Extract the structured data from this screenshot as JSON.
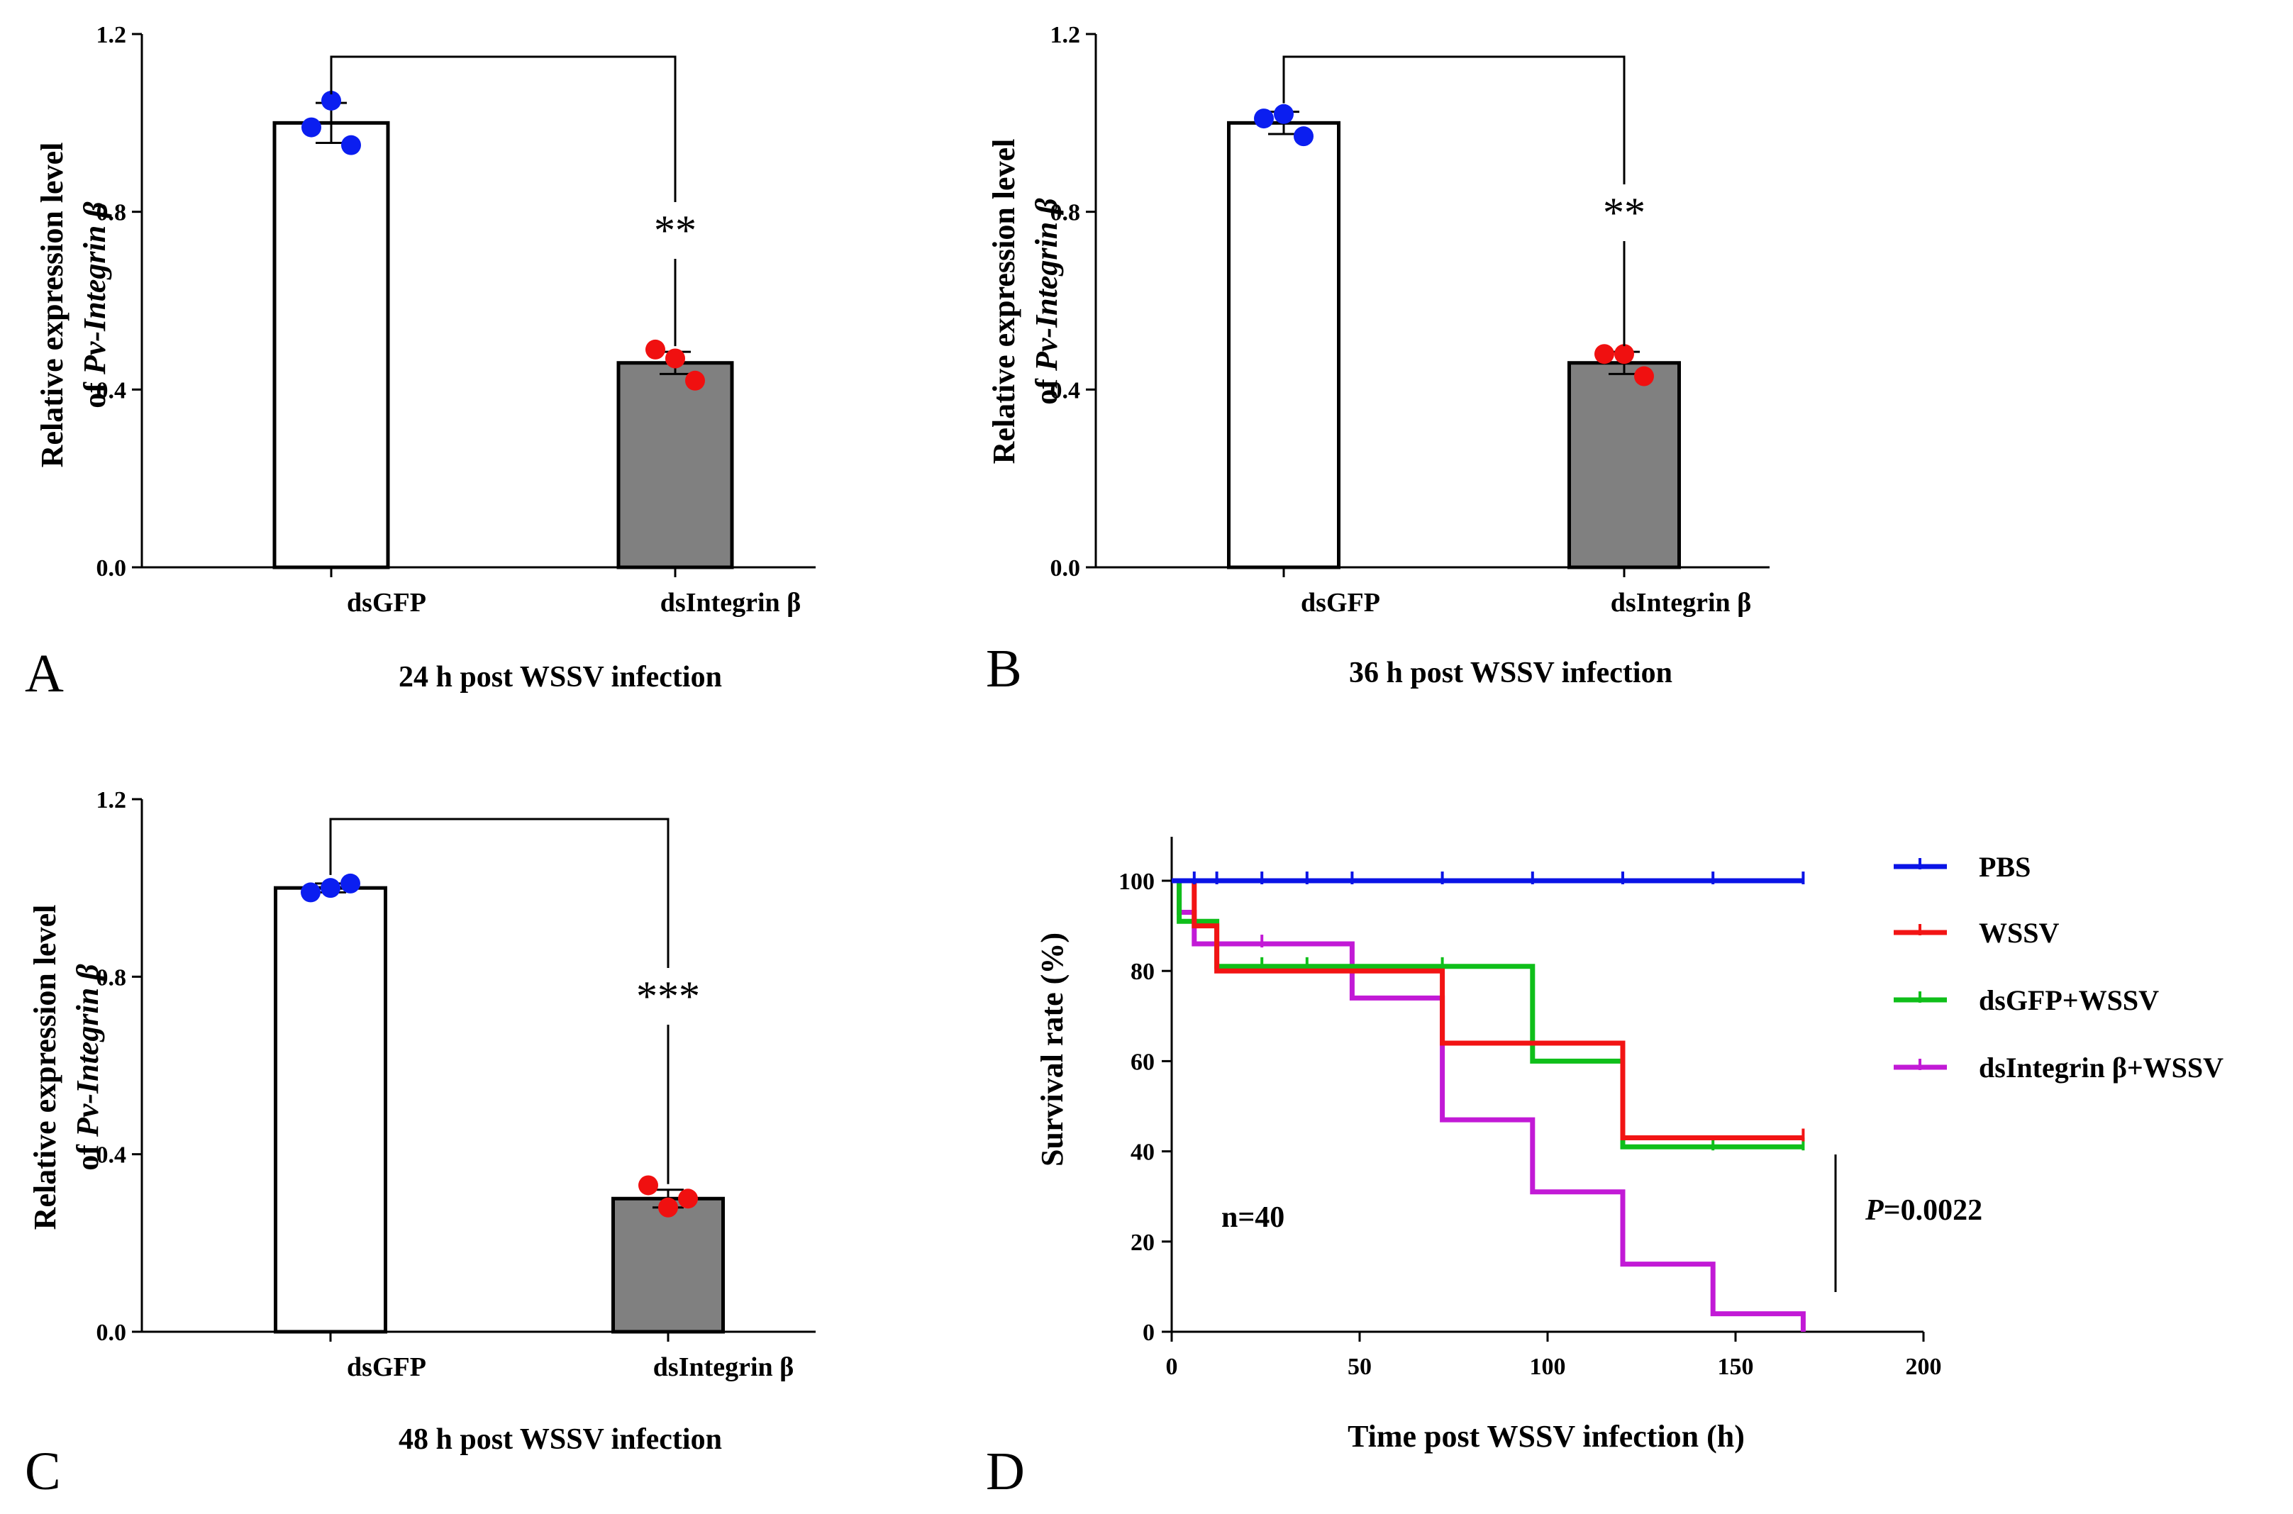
{
  "chart_data": [
    {
      "panel": "A",
      "type": "bar",
      "title": "24 h post WSSV infection",
      "ylabel_line1": "Relative expression level",
      "ylabel_line2_prefix": "of ",
      "ylabel_line2_italic": "Pv-Integrin β",
      "ylim": [
        0,
        1.2
      ],
      "yticks": [
        "0.0",
        "0.4",
        "0.8",
        "1.2"
      ],
      "categories": [
        "dsGFP",
        "dsIntegrin β"
      ],
      "values": [
        1.0,
        0.46
      ],
      "errors": [
        0.045,
        0.025
      ],
      "points": [
        [
          0.99,
          1.05,
          0.95
        ],
        [
          0.49,
          0.47,
          0.42
        ]
      ],
      "significance": "**",
      "colors": {
        "bar1": "#ffffff",
        "bar2": "#808080",
        "dot1": "#0b1ef0",
        "dot2": "#f01010"
      }
    },
    {
      "panel": "B",
      "type": "bar",
      "title": "36 h post WSSV infection",
      "ylabel_line1": "Relative expression level",
      "ylabel_line2_prefix": "of ",
      "ylabel_line2_italic": "Pv-Integrin β",
      "ylim": [
        0,
        1.2
      ],
      "yticks": [
        "0.0",
        "0.4",
        "0.8",
        "1.2"
      ],
      "categories": [
        "dsGFP",
        "dsIntegrin β"
      ],
      "values": [
        1.0,
        0.46
      ],
      "errors": [
        0.025,
        0.025
      ],
      "points": [
        [
          1.01,
          1.02,
          0.97
        ],
        [
          0.48,
          0.48,
          0.43
        ]
      ],
      "significance": "**",
      "colors": {
        "bar1": "#ffffff",
        "bar2": "#808080",
        "dot1": "#0b1ef0",
        "dot2": "#f01010"
      }
    },
    {
      "panel": "C",
      "type": "bar",
      "title": "48 h post WSSV infection",
      "ylabel_line1": "Relative expression level",
      "ylabel_line2_prefix": "of ",
      "ylabel_line2_italic": "Pv-Integrin β",
      "ylim": [
        0,
        1.2
      ],
      "yticks": [
        "0.0",
        "0.4",
        "0.8",
        "1.2"
      ],
      "categories": [
        "dsGFP",
        "dsIntegrin β"
      ],
      "values": [
        1.0,
        0.3
      ],
      "errors": [
        0.01,
        0.02
      ],
      "points": [
        [
          0.99,
          1.0,
          1.01
        ],
        [
          0.33,
          0.28,
          0.3
        ]
      ],
      "significance": "***",
      "colors": {
        "bar1": "#ffffff",
        "bar2": "#808080",
        "dot1": "#0b1ef0",
        "dot2": "#f01010"
      }
    },
    {
      "panel": "D",
      "type": "line",
      "subtype": "survival-step",
      "xlabel": "Time post WSSV infection (h)",
      "ylabel": "Survival rate (%)",
      "xlim": [
        0,
        200
      ],
      "ylim": [
        0,
        110
      ],
      "xticks": [
        "0",
        "50",
        "100",
        "150",
        "200"
      ],
      "yticks": [
        "0",
        "20",
        "40",
        "60",
        "80",
        "100"
      ],
      "annotation": "n=40",
      "pvalue_italic": "P",
      "pvalue_text": "=0.0022",
      "legend_position": "right",
      "series": [
        {
          "name": "PBS",
          "color": "#0a14e6",
          "steps": [
            [
              0,
              100
            ],
            [
              168,
              100
            ]
          ],
          "censors": [
            6,
            12,
            24,
            36,
            48,
            72,
            96,
            120,
            144,
            168
          ]
        },
        {
          "name": "WSSV",
          "color": "#f21414",
          "steps": [
            [
              0,
              100
            ],
            [
              6,
              100
            ],
            [
              6,
              90
            ],
            [
              12,
              90
            ],
            [
              12,
              80
            ],
            [
              72,
              80
            ],
            [
              72,
              64
            ],
            [
              120,
              64
            ],
            [
              120,
              43
            ],
            [
              168,
              43
            ]
          ],
          "censors": [
            168
          ]
        },
        {
          "name": "dsGFP+WSSV",
          "color": "#0fbf1a",
          "steps": [
            [
              0,
              100
            ],
            [
              2,
              100
            ],
            [
              2,
              91
            ],
            [
              12,
              91
            ],
            [
              12,
              81
            ],
            [
              96,
              81
            ],
            [
              96,
              60
            ],
            [
              120,
              60
            ],
            [
              120,
              41
            ],
            [
              168,
              41
            ]
          ],
          "censors": [
            24,
            36,
            72,
            144,
            168
          ]
        },
        {
          "name": "dsIntegrin β+WSSV",
          "color": "#c21ad6",
          "steps": [
            [
              0,
              100
            ],
            [
              2,
              100
            ],
            [
              2,
              93
            ],
            [
              6,
              93
            ],
            [
              6,
              86
            ],
            [
              48,
              86
            ],
            [
              48,
              74
            ],
            [
              72,
              74
            ],
            [
              72,
              47
            ],
            [
              96,
              47
            ],
            [
              96,
              31
            ],
            [
              120,
              31
            ],
            [
              120,
              15
            ],
            [
              144,
              15
            ],
            [
              144,
              4
            ],
            [
              168,
              4
            ],
            [
              168,
              0
            ]
          ],
          "censors": [
            24
          ]
        }
      ]
    }
  ]
}
